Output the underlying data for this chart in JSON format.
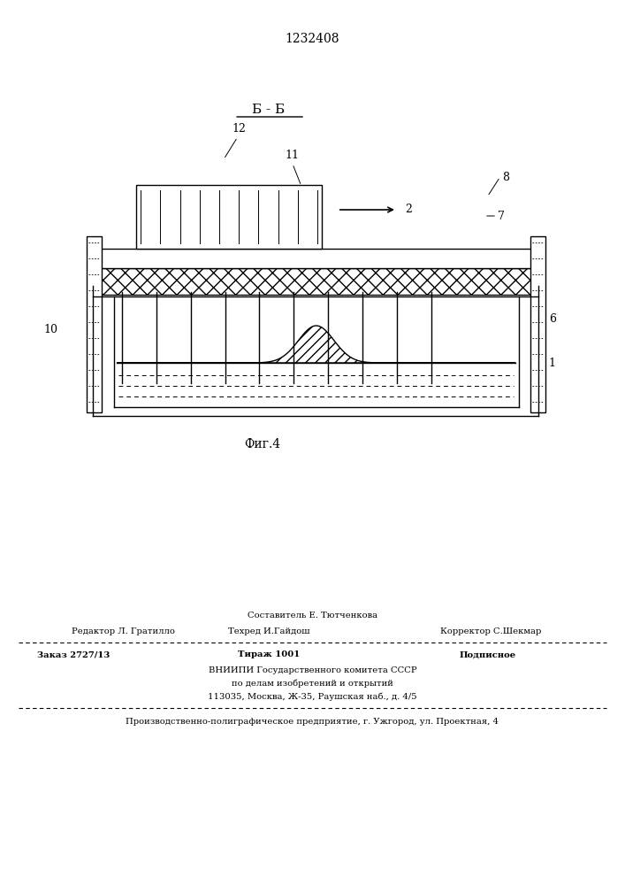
{
  "patent_number": "1232408",
  "section_label": "Б - Б",
  "fig_label": "Фиг.4",
  "bg_color": "#ffffff",
  "line_color": "#000000",
  "footer": {
    "author_line": "Составитель Е. Тютченкова",
    "editor_label": "Редактор Л. Гратилло",
    "techred_label": "Техред И.Гайдош",
    "corrector_label": "Корректор С.Шекмар",
    "order_label": "Заказ 2727/13",
    "tirazh_label": "Тираж 1001",
    "podpisnoe_label": "Подписное",
    "vniipi_line1": "ВНИИПИ Государственного комитета СССР",
    "vniipi_line2": "по делам изобретений и открытий",
    "vniipi_line3": "113035, Москва, Ж-35, Раушская наб., д. 4/5",
    "production_line": "Производственно-полиграфическое предприятие, г. Ужгород, ул. Проектная, 4"
  }
}
